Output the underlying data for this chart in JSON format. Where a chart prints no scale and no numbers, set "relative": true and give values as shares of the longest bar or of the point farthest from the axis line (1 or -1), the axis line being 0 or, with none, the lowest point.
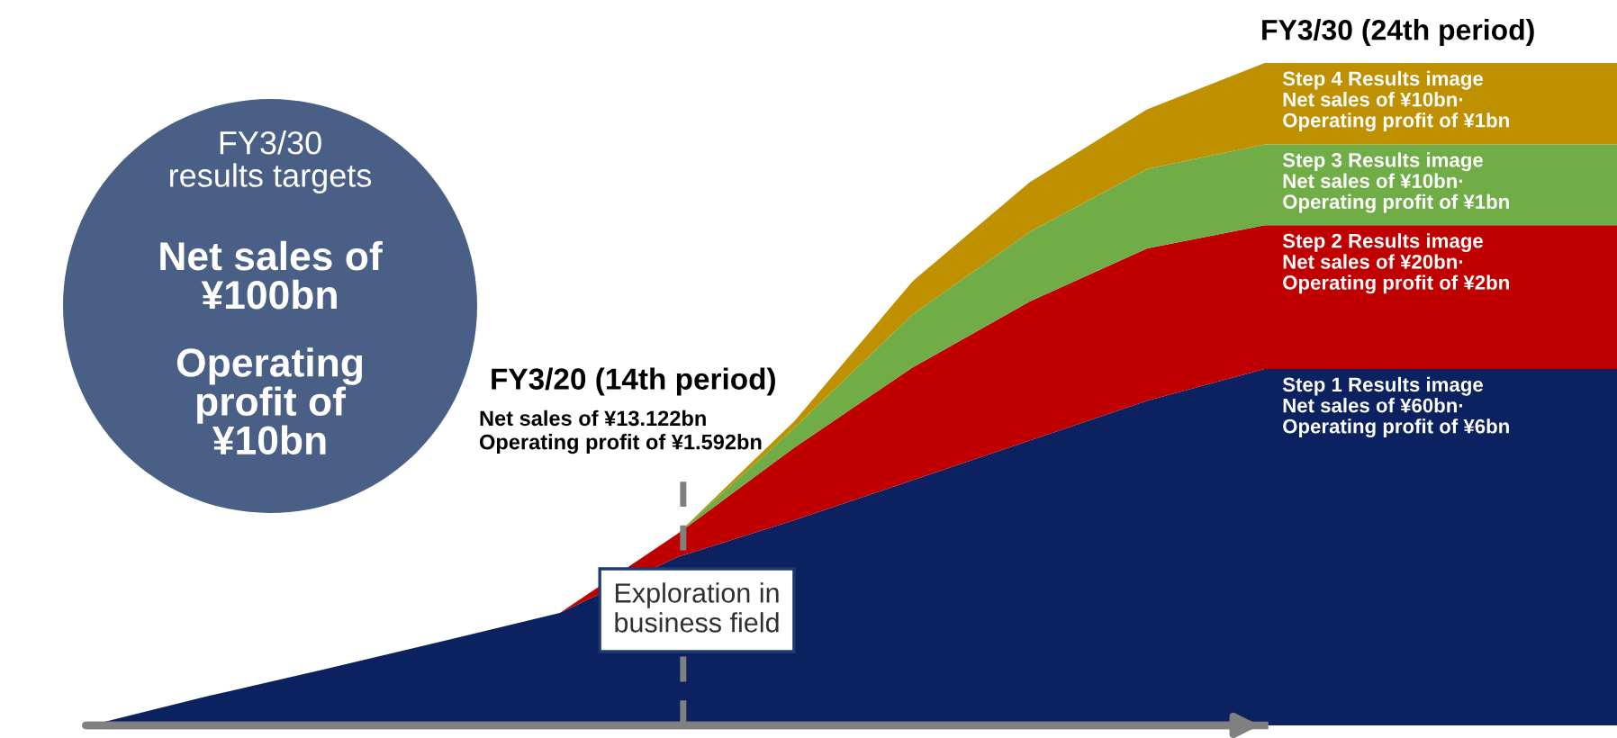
{
  "chart_data": {
    "type": "area",
    "stacked": true,
    "relative": true,
    "tick_labels": false,
    "legend": false,
    "categories": [
      null,
      null,
      null,
      null,
      null,
      null,
      null,
      null,
      null,
      null,
      null,
      null,
      null,
      null
    ],
    "series": [
      {
        "name": "Step 1 Results image\nNet sales of ¥60bn·\nOperating profit of ¥6bn",
        "color": "#0c2160",
        "values": [
          0,
          0.044,
          0.085,
          0.127,
          0.17,
          0.254,
          0.31,
          0.37,
          0.43,
          0.49,
          0.538,
          0.538,
          0.538,
          0.538
        ]
      },
      {
        "name": "Step 2 Results image\nNet sales of ¥20bn·\nOperating profit of ¥2bn",
        "color": "#c00000",
        "values": [
          0,
          0,
          0,
          0,
          0,
          0.035,
          0.11,
          0.17,
          0.21,
          0.23,
          0.217,
          0.217,
          0.217,
          0.217
        ]
      },
      {
        "name": "Step 3 Results image\nNet sales of ¥10bn·\nOperating profit of ¥1bn",
        "color": "#70ad47",
        "values": [
          0,
          0,
          0,
          0,
          0,
          0,
          0.03,
          0.08,
          0.105,
          0.12,
          0.122,
          0.122,
          0.122,
          0.122
        ]
      },
      {
        "name": "Step 4 Results image\nNet sales of ¥10bn·\nOperating profit of ¥1bn",
        "color": "#bf9000",
        "values": [
          0,
          0,
          0,
          0,
          0,
          0,
          0.01,
          0.05,
          0.075,
          0.09,
          0.123,
          0.123,
          0.123,
          0.123
        ]
      }
    ],
    "annotations": [
      "FY3/30\nresults targets",
      "Net sales of\n¥100bn",
      "Operating\nprofit of\n¥10bn",
      "FY3/20 (14th period)",
      "Net sales of ¥13.122bn\nOperating profit of ¥1.592bn",
      "FY3/30 (24th period)",
      "Exploration in\nbusiness field"
    ]
  }
}
